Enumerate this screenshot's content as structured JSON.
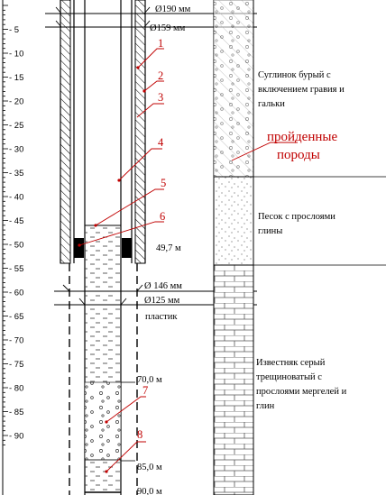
{
  "depth_scale": {
    "labels": [
      "- 5",
      "- 10",
      "- 15",
      "- 20",
      "- 25",
      "- 30",
      "- 35",
      "- 40",
      "- 45",
      "- 50",
      "- 55",
      "- 60",
      "- 65",
      "- 70",
      "- 75",
      "- 80",
      "- 85",
      "- 90"
    ]
  },
  "dimensions": {
    "d190": "Ø190 мм",
    "d159": "Ø159 мм",
    "d146": "Ø 146 мм",
    "d125": "Ø125 мм",
    "plastic": "пластик"
  },
  "depth_marks": {
    "m49": "49,7 м",
    "m70": "70,0 м",
    "m85": "85,0 м",
    "m90": "90,0 м"
  },
  "callouts": [
    "1",
    "2",
    "3",
    "4",
    "5",
    "6",
    "7",
    "8"
  ],
  "geology": {
    "layer1": [
      "Суглинок бурый с",
      "включением гравия и",
      "гальки"
    ],
    "layer2": [
      "Песок с прослоями",
      "глины"
    ],
    "layer3": [
      "Известняк серый",
      "трещиноватый с",
      "прослоями мергелей и",
      "глин"
    ]
  },
  "passed_rocks": [
    "пройденные",
    "породы"
  ],
  "colors": {
    "accent": "#c00000",
    "line": "#000000"
  }
}
